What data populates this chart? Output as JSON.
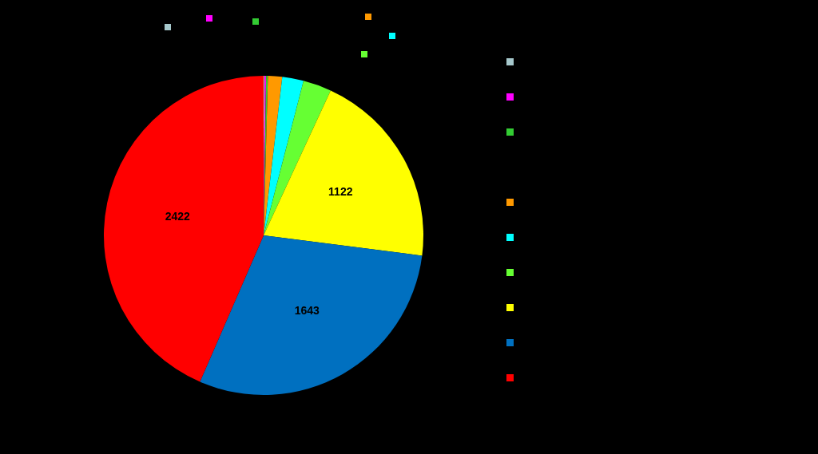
{
  "chart_data": {
    "type": "pie",
    "categories": [
      null,
      null,
      null,
      null,
      null,
      null,
      null,
      null,
      null
    ],
    "values": [
      6,
      8,
      10,
      80,
      120,
      160,
      1122,
      1643,
      2422
    ],
    "colors": [
      "#a6c8cc",
      "#ff00ff",
      "#33cc33",
      "#ff9900",
      "#00ffff",
      "#66ff33",
      "#ffff00",
      "#0070c0",
      "#ff0000"
    ],
    "value_labels": [
      null,
      null,
      null,
      null,
      null,
      null,
      "1122",
      "1643",
      "2422"
    ]
  }
}
